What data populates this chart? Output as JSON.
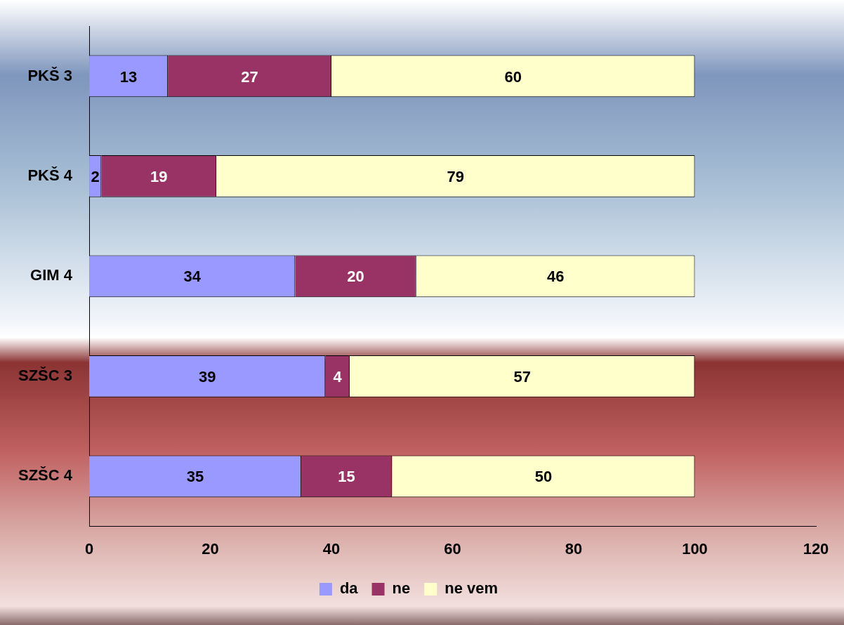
{
  "chart_data": {
    "type": "bar",
    "orientation": "horizontal",
    "stacked": true,
    "categories": [
      "PKŠ 3",
      "PKŠ 4",
      "GIM 4",
      "SZŠC 3",
      "SZŠC 4"
    ],
    "series": [
      {
        "name": "da",
        "color": "#9999ff",
        "values": [
          13,
          2,
          34,
          39,
          35
        ]
      },
      {
        "name": "ne",
        "color": "#993366",
        "values": [
          27,
          19,
          20,
          4,
          15
        ]
      },
      {
        "name": "ne vem",
        "color": "#ffffcc",
        "values": [
          60,
          79,
          46,
          57,
          50
        ]
      }
    ],
    "xlim": [
      0,
      120
    ],
    "xticks": [
      0,
      20,
      40,
      60,
      80,
      100,
      120
    ],
    "grid": false,
    "legend": "bottom",
    "data_labels": true
  }
}
